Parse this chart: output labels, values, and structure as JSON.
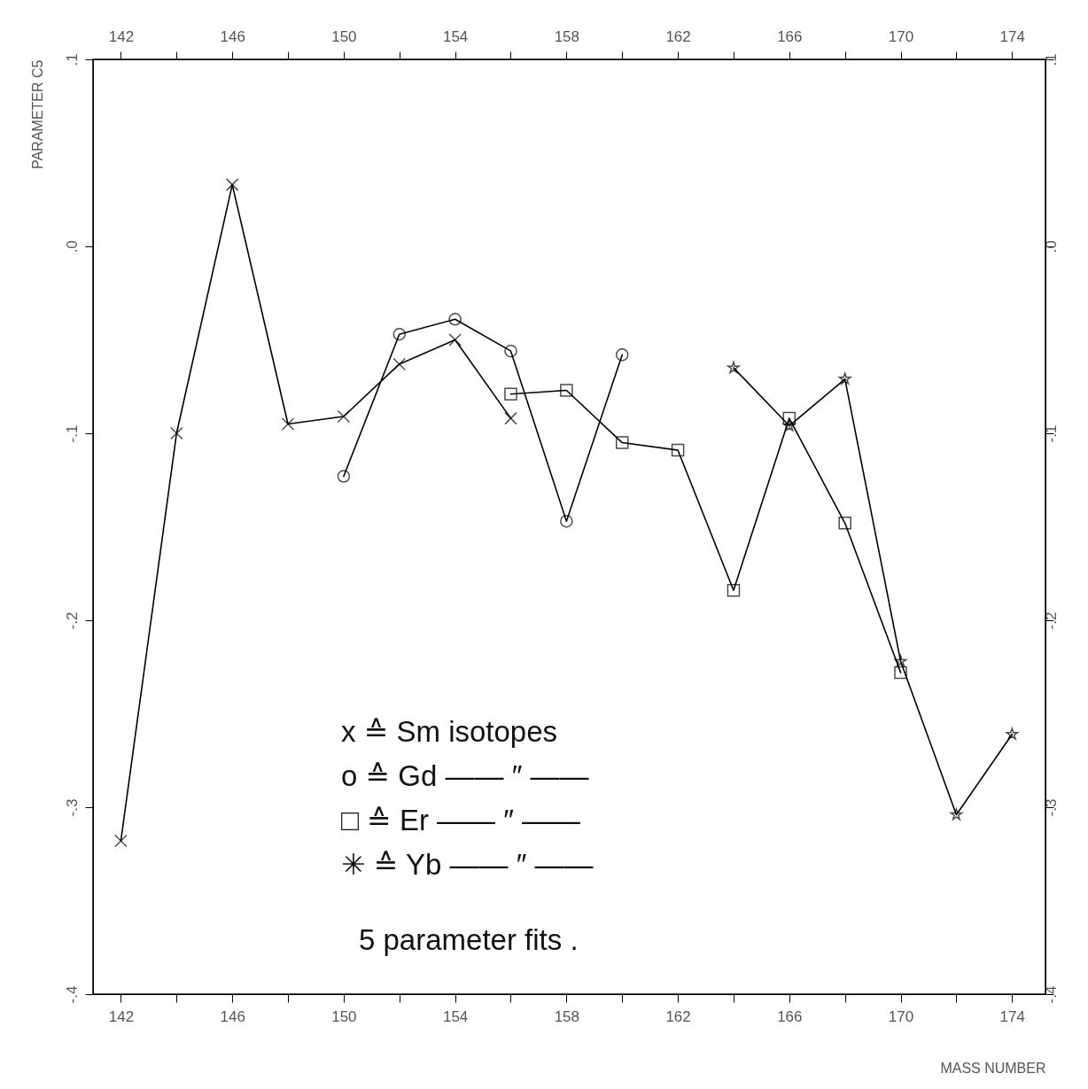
{
  "chart_data": {
    "type": "line",
    "xlabel": "MASS NUMBER",
    "ylabel": "PARAMETER C5",
    "xlim": [
      141,
      175.2
    ],
    "ylim": [
      -0.4,
      0.1
    ],
    "xticks": [
      142,
      {
        "value": 144,
        "label": null
      },
      146,
      {
        "value": 148,
        "label": null
      },
      150,
      {
        "value": 152,
        "label": null
      },
      154,
      {
        "value": 156,
        "label": null
      },
      158,
      {
        "value": 160,
        "label": null
      },
      162,
      {
        "value": 164,
        "label": null
      },
      166,
      {
        "value": 168,
        "label": null
      },
      170,
      {
        "value": 172,
        "label": null
      },
      174
    ],
    "x2lim": [
      141,
      175.2
    ],
    "x2ticks": [
      142,
      {
        "value": 144,
        "label": null
      },
      146,
      {
        "value": 148,
        "label": null
      },
      150,
      {
        "value": 152,
        "label": null
      },
      154,
      {
        "value": 156,
        "label": null
      },
      158,
      {
        "value": 160,
        "label": null
      },
      162,
      {
        "value": 164,
        "label": null
      },
      166,
      {
        "value": 168,
        "label": null
      },
      170,
      {
        "value": 172,
        "label": null
      },
      174
    ],
    "yticks": [
      {
        "value": -0.4,
        "label": "-.4"
      },
      {
        "value": -0.3,
        "label": "-.3"
      },
      {
        "value": -0.2,
        "label": "-.2"
      },
      {
        "value": -0.1,
        "label": "-.1"
      },
      {
        "value": 0,
        "label": ".0"
      },
      {
        "value": 0.1,
        "label": ".1"
      }
    ],
    "y2lim": [
      -0.4,
      0.1
    ],
    "y2ticks": [
      {
        "value": -0.4,
        "label": "-.4"
      },
      {
        "value": -0.3,
        "label": "-.3"
      },
      {
        "value": -0.2,
        "label": "-.2"
      },
      {
        "value": -0.1,
        "label": "-.1"
      },
      {
        "value": 0,
        "label": ".0"
      },
      {
        "value": 0.1,
        "label": ".1"
      }
    ],
    "grid": false,
    "legend": false,
    "series": [
      {
        "color": "#000000",
        "marker": "cross",
        "x": [
          142,
          144,
          146,
          148,
          150,
          152,
          154,
          156
        ],
        "values": [
          -0.318,
          -0.1,
          0.033,
          -0.095,
          -0.091,
          -0.063,
          -0.05,
          -0.092
        ]
      },
      {
        "color": "#000000",
        "marker": "circle",
        "x": [
          150,
          152,
          154,
          156,
          158,
          160
        ],
        "values": [
          -0.123,
          -0.047,
          -0.039,
          -0.056,
          -0.147,
          -0.058
        ]
      },
      {
        "color": "#000000",
        "marker": "square",
        "x": [
          156,
          158,
          160,
          162,
          164,
          166,
          168,
          170
        ],
        "values": [
          -0.079,
          -0.077,
          -0.105,
          -0.109,
          -0.184,
          -0.092,
          -0.148,
          -0.228
        ]
      },
      {
        "color": "#000000",
        "marker": "star",
        "x": [
          164,
          166,
          168,
          170,
          172,
          174
        ],
        "values": [
          -0.065,
          -0.096,
          -0.071,
          -0.222,
          -0.304,
          -0.261
        ]
      }
    ],
    "annotations": [
      "x ≙ Sm   isotopes",
      "o ≙ Gd      —— ″ ——",
      "□ ≙ Er      —— ″ ——",
      "✳ ≙ Yb      —— ″ ——",
      "5 parameter  fits ."
    ]
  }
}
